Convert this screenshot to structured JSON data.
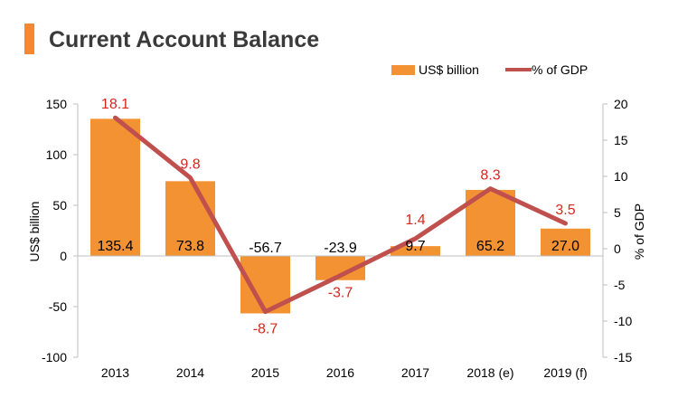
{
  "page": {
    "title": "Current Account Balance"
  },
  "colors": {
    "bar": "#f39233",
    "line": "#c0504d",
    "line_label": "#d9261c",
    "bar_label": "#000000",
    "axis": "#bfbfbf",
    "title": "#3a3a3a",
    "accent": "#f7882f"
  },
  "chart_data": {
    "type": "bar",
    "categories": [
      "2013",
      "2014",
      "2015",
      "2016",
      "2017",
      "2018 (e)",
      "2019 (f)"
    ],
    "series": [
      {
        "name": "US$ billion",
        "type": "bar",
        "axis": "left",
        "values": [
          135.4,
          73.8,
          -56.7,
          -23.9,
          9.7,
          65.2,
          27.0
        ],
        "labels": [
          "135.4",
          "73.8",
          "-56.7",
          "-23.9",
          "9.7",
          "65.2",
          "27.0"
        ]
      },
      {
        "name": "% of GDP",
        "type": "line",
        "axis": "right",
        "values": [
          18.1,
          9.8,
          -8.7,
          -3.7,
          1.4,
          8.3,
          3.5
        ],
        "labels": [
          "18.1",
          "9.8",
          "-8.7",
          "-3.7",
          "1.4",
          "8.3",
          "3.5"
        ]
      }
    ],
    "title": "Current Account Balance",
    "ylabel": "US$ billion",
    "y2label": "% of GDP",
    "ylim": [
      -100,
      150
    ],
    "y2lim": [
      -15,
      20
    ],
    "yticks": [
      "-100",
      "-50",
      "0",
      "50",
      "100",
      "150"
    ],
    "y2ticks": [
      "-15",
      "-10",
      "-5",
      "0",
      "5",
      "10",
      "15",
      "20"
    ],
    "grid": false,
    "legend_position": "top-right"
  }
}
